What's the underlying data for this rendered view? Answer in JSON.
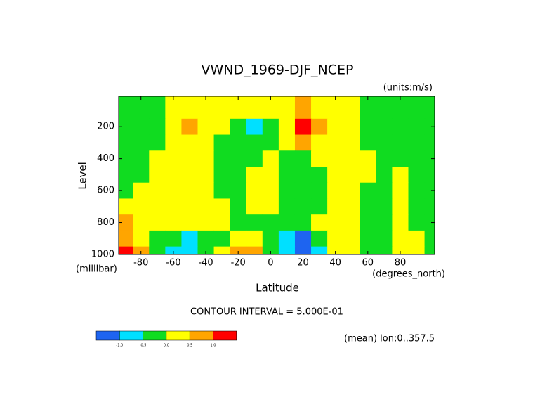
{
  "chart_data": {
    "type": "contour",
    "title": "VWND_1969-DJF_NCEP",
    "subtitle": "(units:m/s)",
    "x_label": "Latitude",
    "x_units": "(degrees_north)",
    "y_label": "Level",
    "y_units": "(millibar)",
    "annotation": "CONTOUR INTERVAL = 5.000E-01",
    "note": "(mean) lon:0..357.5",
    "xlim": [
      -93.75,
      101.25
    ],
    "ylim": [
      1000,
      10
    ],
    "xticks": [
      -80,
      -60,
      -40,
      -20,
      0,
      20,
      40,
      60,
      80
    ],
    "yticks": [
      200,
      400,
      600,
      800,
      1000
    ],
    "x": [
      -90,
      -80,
      -70,
      -60,
      -50,
      -40,
      -30,
      -20,
      -10,
      0,
      10,
      20,
      30,
      40,
      50,
      60,
      70,
      80,
      90,
      100
    ],
    "y": [
      100,
      200,
      300,
      400,
      500,
      600,
      700,
      800,
      900,
      1000
    ],
    "z": [
      [
        -0.2,
        -0.2,
        -0.1,
        0.2,
        0.2,
        0.2,
        0.2,
        0.3,
        0.2,
        0.1,
        0.2,
        0.6,
        0.3,
        0.2,
        0.1,
        -0.1,
        -0.2,
        -0.2,
        -0.2,
        -0.2
      ],
      [
        -0.3,
        -0.3,
        -0.2,
        0.2,
        0.6,
        0.3,
        0.1,
        -0.2,
        -0.6,
        -0.2,
        0.3,
        1.5,
        0.8,
        0.3,
        0.1,
        -0.1,
        -0.2,
        -0.2,
        -0.3,
        -0.3
      ],
      [
        -0.2,
        -0.2,
        -0.1,
        0.2,
        0.3,
        0.2,
        -0.1,
        -0.2,
        -0.2,
        -0.1,
        0.2,
        0.6,
        0.3,
        0.2,
        0.1,
        -0.1,
        -0.2,
        -0.2,
        -0.3,
        -0.3
      ],
      [
        -0.1,
        -0.2,
        0.2,
        0.3,
        0.2,
        0.1,
        -0.1,
        -0.2,
        -0.1,
        0.1,
        -0.1,
        -0.2,
        0.1,
        0.2,
        0.1,
        0.1,
        -0.1,
        -0.1,
        -0.2,
        -0.2
      ],
      [
        -0.1,
        -0.1,
        0.2,
        0.3,
        0.2,
        0.1,
        -0.1,
        -0.2,
        0.2,
        0.1,
        -0.1,
        -0.2,
        -0.1,
        0.2,
        0.2,
        0.1,
        -0.1,
        0.1,
        -0.1,
        -0.2
      ],
      [
        -0.1,
        0.1,
        0.2,
        0.3,
        0.2,
        0.1,
        -0.1,
        -0.2,
        0.2,
        0.1,
        -0.1,
        -0.2,
        -0.1,
        0.2,
        0.2,
        -0.1,
        -0.1,
        0.1,
        -0.1,
        -0.2
      ],
      [
        0.1,
        0.2,
        0.2,
        0.2,
        0.1,
        0.1,
        0.1,
        -0.1,
        0.2,
        0.1,
        -0.1,
        -0.1,
        -0.1,
        0.2,
        0.2,
        -0.1,
        -0.2,
        0.2,
        -0.1,
        -0.1
      ],
      [
        0.6,
        0.2,
        0.1,
        0.2,
        0.1,
        0.2,
        0.1,
        -0.1,
        -0.1,
        -0.1,
        -0.2,
        -0.3,
        0.1,
        0.2,
        0.1,
        -0.1,
        -0.1,
        0.2,
        -0.1,
        -0.1
      ],
      [
        0.8,
        0.3,
        -0.1,
        -0.3,
        -0.6,
        -0.3,
        -0.1,
        0.3,
        0.1,
        -0.1,
        -0.6,
        -1.2,
        -0.3,
        0.2,
        0.1,
        -0.1,
        -0.1,
        0.2,
        0.1,
        -0.1
      ],
      [
        1.2,
        0.6,
        -0.1,
        -0.6,
        -0.8,
        -0.4,
        0.2,
        0.7,
        0.6,
        -0.1,
        -0.7,
        -1.3,
        -0.6,
        0.2,
        0.1,
        -0.1,
        -0.1,
        0.2,
        0.1,
        -0.1
      ]
    ],
    "levels": [
      {
        "value": -1,
        "label": "-1.0"
      },
      {
        "value": -0.5,
        "label": "-0.5"
      },
      {
        "value": 0,
        "label": "0.0"
      },
      {
        "value": 0.5,
        "label": "0.5"
      },
      {
        "value": 1,
        "label": "1.0"
      }
    ],
    "colors": [
      "#1e64f0",
      "#00e0ff",
      "#10dc20",
      "#ffff00",
      "#ffa500",
      "#ff0000"
    ]
  }
}
